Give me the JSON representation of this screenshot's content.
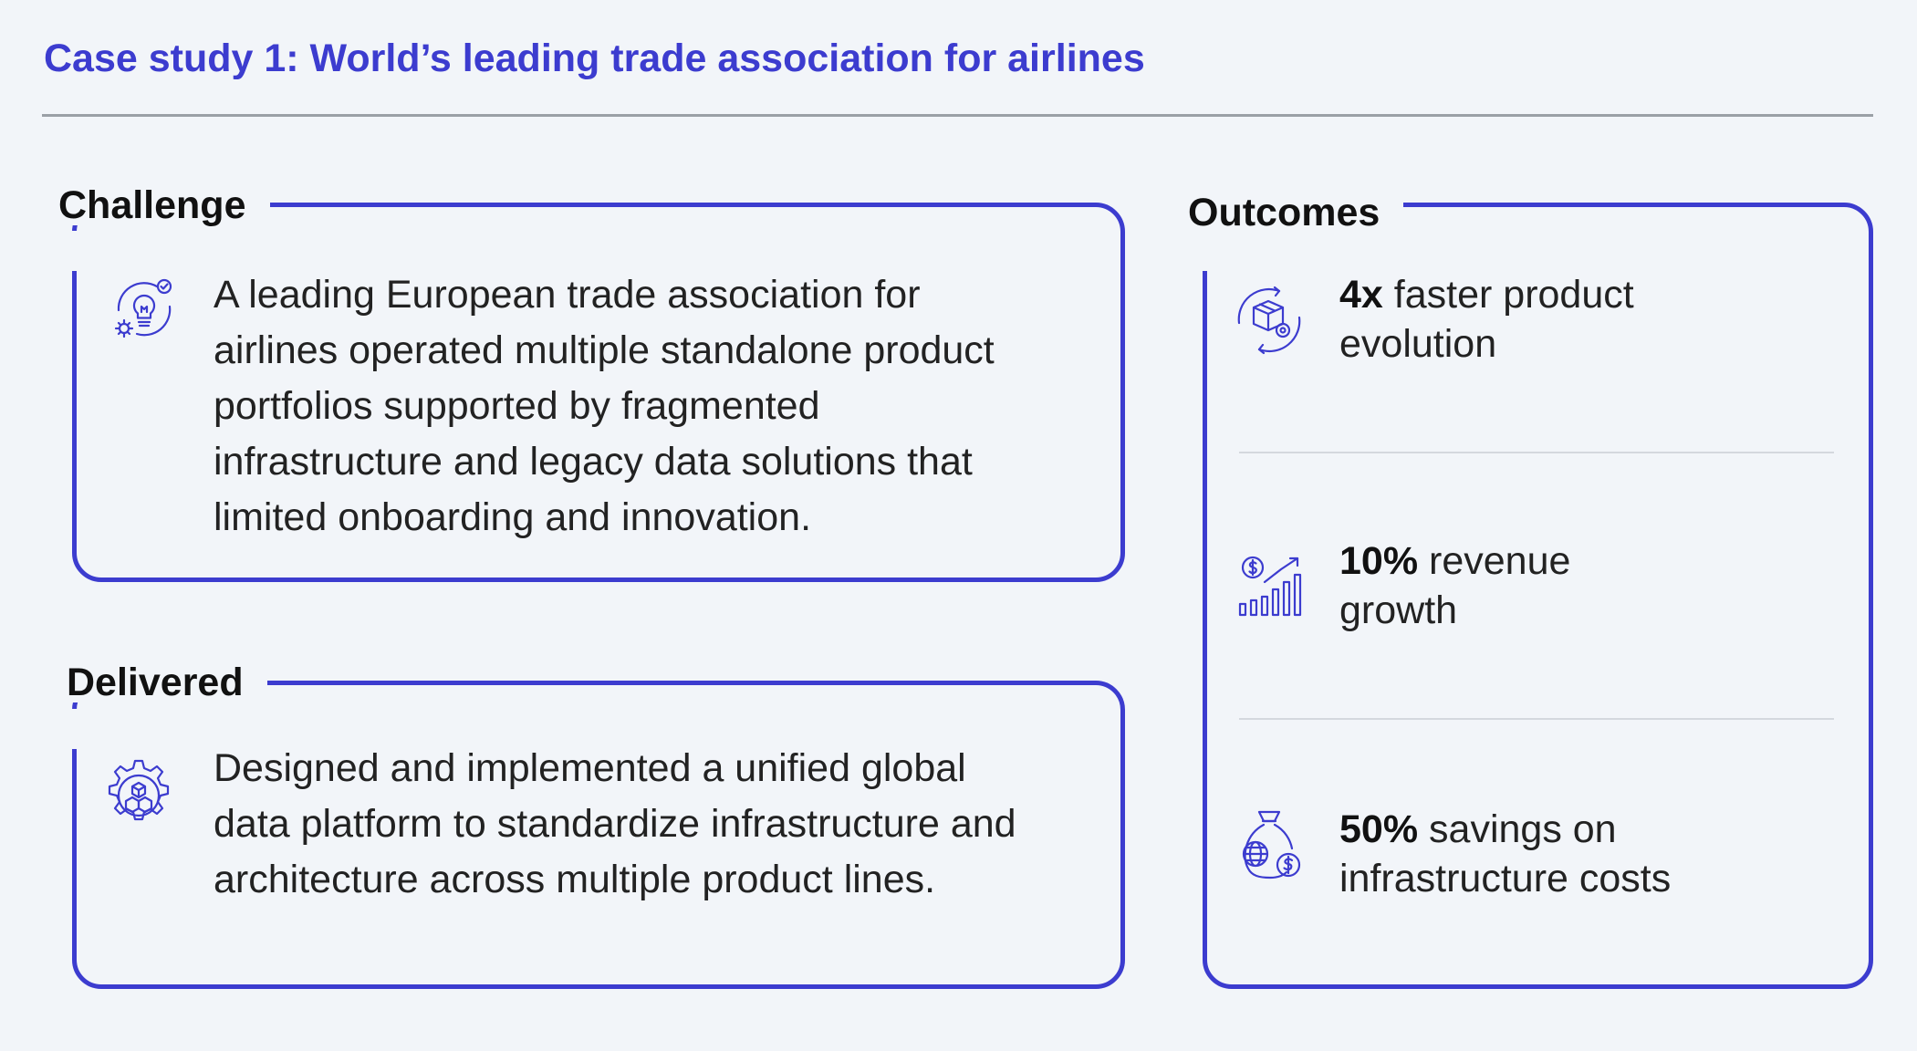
{
  "title": "Case study 1: World’s leading trade association for airlines",
  "challenge": {
    "label": "Challenge",
    "icon": "lightbulb-gear-icon",
    "lines": [
      "A leading European trade association for",
      "airlines operated multiple standalone product",
      "portfolios supported by fragmented",
      "infrastructure and legacy data solutions that",
      "limited onboarding and innovation."
    ]
  },
  "delivered": {
    "label": "Delivered",
    "icon": "gear-cubes-icon",
    "lines": [
      "Designed and implemented a unified global",
      "data platform to standardize infrastructure and",
      "architecture across multiple product lines."
    ]
  },
  "outcomes": {
    "label": "Outcomes",
    "items": [
      {
        "icon": "product-cycle-icon",
        "bold": "4x",
        "line1_rest": " faster product",
        "line2": "evolution"
      },
      {
        "icon": "revenue-growth-chart-icon",
        "bold": "10%",
        "line1_rest": " revenue",
        "line2": "growth"
      },
      {
        "icon": "money-bag-globe-icon",
        "bold": "50%",
        "line1_rest": " savings on",
        "line2": "infrastructure costs"
      }
    ]
  },
  "colors": {
    "accent": "#3c3ccf",
    "background": "#f2f5f9",
    "rule": "#9aa0a6"
  }
}
